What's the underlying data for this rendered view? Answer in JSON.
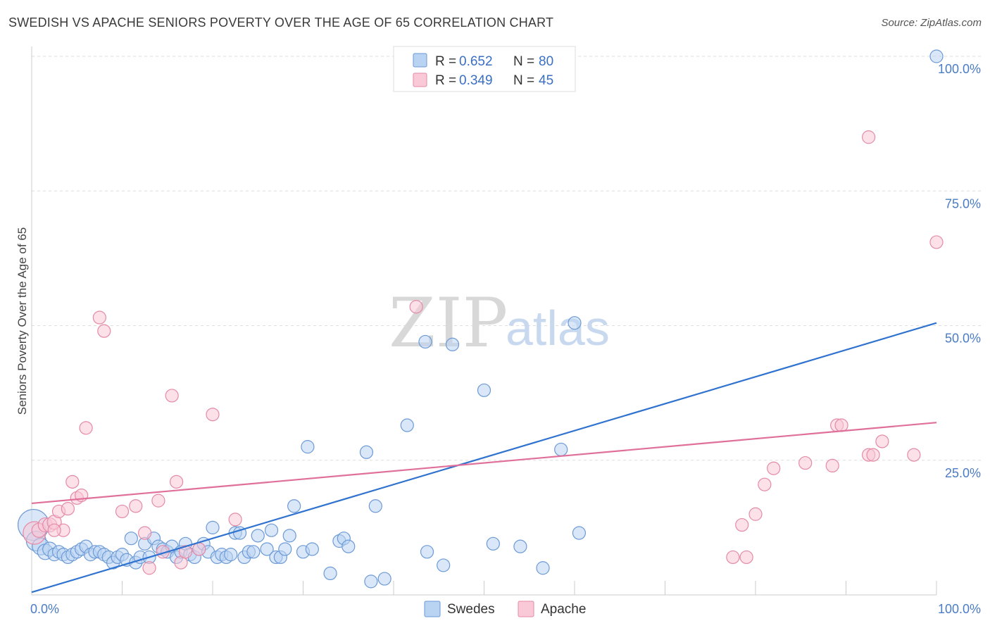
{
  "title": "SWEDISH VS APACHE SENIORS POVERTY OVER THE AGE OF 65 CORRELATION CHART",
  "source": "Source: ZipAtlas.com",
  "watermark": {
    "zip": "ZIP",
    "atlas": "atlas"
  },
  "legend_top": [
    {
      "r_label": "R =",
      "r_value": "0.652",
      "n_label": "N =",
      "n_value": "80"
    },
    {
      "r_label": "R =",
      "r_value": "0.349",
      "n_label": "N =",
      "n_value": "45"
    }
  ],
  "colors": {
    "swedes_fill": "#b9d3f2",
    "swedes_stroke": "#6c9ad6",
    "swedes_line": "#2f72cf",
    "apache_fill": "#f9c9d7",
    "apache_stroke": "#e58aa6",
    "apache_line": "#e0709a",
    "grid": "#dddddd",
    "tick_text": "#4a7cc4"
  },
  "chart_data": {
    "type": "scatter",
    "title": "SWEDISH VS APACHE SENIORS POVERTY OVER THE AGE OF 65 CORRELATION CHART",
    "xlabel": "",
    "ylabel": "Seniors Poverty Over the Age of 65",
    "xlim": [
      0,
      100
    ],
    "ylim": [
      0,
      100
    ],
    "x_tick_labels": [
      "0.0%",
      "100.0%"
    ],
    "y_tick_labels": [
      "100.0%",
      "75.0%",
      "50.0%",
      "25.0%"
    ],
    "y_tick_values": [
      100,
      75,
      50,
      25
    ],
    "grid": true,
    "legend_position": "top-center",
    "series": [
      {
        "name": "Swedes",
        "r": 0.652,
        "n": 80,
        "trend": [
          [
            0,
            0.5
          ],
          [
            100,
            50.5
          ]
        ],
        "points": [
          [
            0.2,
            13.0,
            22
          ],
          [
            0.5,
            10.0,
            14
          ],
          [
            1.0,
            9.0,
            12
          ],
          [
            1.5,
            8.0,
            11
          ],
          [
            2.0,
            8.5,
            10
          ],
          [
            2.5,
            7.5,
            9
          ],
          [
            3.0,
            8.0,
            9
          ],
          [
            3.5,
            7.5,
            9
          ],
          [
            4.0,
            7.0,
            9
          ],
          [
            4.5,
            7.5,
            9
          ],
          [
            5.0,
            8.0,
            9
          ],
          [
            5.5,
            8.5,
            9
          ],
          [
            6.0,
            9.0,
            9
          ],
          [
            6.5,
            7.5,
            9
          ],
          [
            7.0,
            8.0,
            9
          ],
          [
            7.5,
            8.0,
            9
          ],
          [
            8.0,
            7.5,
            9
          ],
          [
            8.5,
            7.0,
            9
          ],
          [
            9.0,
            6.0,
            9
          ],
          [
            9.5,
            7.0,
            9
          ],
          [
            10.0,
            7.5,
            9
          ],
          [
            10.5,
            6.5,
            9
          ],
          [
            11.0,
            10.5,
            9
          ],
          [
            11.5,
            6.0,
            9
          ],
          [
            12.0,
            7.0,
            9
          ],
          [
            12.5,
            9.5,
            9
          ],
          [
            13.0,
            7.0,
            9
          ],
          [
            13.5,
            10.5,
            9
          ],
          [
            14.0,
            9.0,
            9
          ],
          [
            14.5,
            8.5,
            9
          ],
          [
            15.0,
            8.0,
            9
          ],
          [
            15.5,
            9.0,
            9
          ],
          [
            16.0,
            7.0,
            9
          ],
          [
            16.5,
            8.0,
            9
          ],
          [
            17.0,
            9.5,
            9
          ],
          [
            17.5,
            7.5,
            9
          ],
          [
            18.0,
            7.0,
            9
          ],
          [
            18.5,
            8.5,
            9
          ],
          [
            19.0,
            9.5,
            9
          ],
          [
            19.5,
            8.0,
            9
          ],
          [
            20.0,
            12.5,
            9
          ],
          [
            20.5,
            7.0,
            9
          ],
          [
            21.0,
            7.5,
            9
          ],
          [
            21.5,
            7.0,
            9
          ],
          [
            22.0,
            7.5,
            9
          ],
          [
            22.5,
            11.5,
            9
          ],
          [
            23.0,
            11.5,
            9
          ],
          [
            23.5,
            7.0,
            9
          ],
          [
            24.0,
            8.0,
            9
          ],
          [
            24.5,
            8.0,
            9
          ],
          [
            25.0,
            11.0,
            9
          ],
          [
            26.0,
            8.5,
            9
          ],
          [
            26.5,
            12.0,
            9
          ],
          [
            27.0,
            7.0,
            9
          ],
          [
            27.5,
            7.0,
            9
          ],
          [
            28.0,
            8.5,
            9
          ],
          [
            28.5,
            11.0,
            9
          ],
          [
            29.0,
            16.5,
            9
          ],
          [
            30.0,
            8.0,
            9
          ],
          [
            30.5,
            27.5,
            9
          ],
          [
            31.0,
            8.5,
            9
          ],
          [
            33.0,
            4.0,
            9
          ],
          [
            34.0,
            10.0,
            9
          ],
          [
            34.5,
            10.5,
            9
          ],
          [
            35.0,
            9.0,
            9
          ],
          [
            37.5,
            2.5,
            9
          ],
          [
            39.0,
            3.0,
            9
          ],
          [
            37.0,
            26.5,
            9
          ],
          [
            41.5,
            31.5,
            9
          ],
          [
            43.5,
            47.0,
            9
          ],
          [
            43.7,
            8.0,
            9
          ],
          [
            45.5,
            5.5,
            9
          ],
          [
            46.5,
            46.5,
            9
          ],
          [
            50.0,
            38.0,
            9
          ],
          [
            51.0,
            9.5,
            9
          ],
          [
            54.0,
            9.0,
            9
          ],
          [
            56.5,
            5.0,
            9
          ],
          [
            58.5,
            27.0,
            9
          ],
          [
            60.5,
            11.5,
            9
          ],
          [
            60.0,
            50.5,
            9
          ],
          [
            100.0,
            100.0,
            9
          ],
          [
            38.0,
            16.5,
            9
          ]
        ]
      },
      {
        "name": "Apache",
        "r": 0.349,
        "n": 45,
        "trend": [
          [
            0,
            17.0
          ],
          [
            100,
            32.0
          ]
        ],
        "points": [
          [
            0.3,
            11.5,
            16
          ],
          [
            0.8,
            12.0,
            10
          ],
          [
            1.5,
            13.0,
            10
          ],
          [
            2.0,
            13.0,
            10
          ],
          [
            2.5,
            13.5,
            10
          ],
          [
            3.0,
            15.5,
            9
          ],
          [
            3.5,
            12.0,
            9
          ],
          [
            4.0,
            16.0,
            9
          ],
          [
            4.5,
            21.0,
            9
          ],
          [
            5.0,
            18.0,
            9
          ],
          [
            5.5,
            18.5,
            9
          ],
          [
            6.0,
            31.0,
            9
          ],
          [
            7.5,
            51.5,
            9
          ],
          [
            8.0,
            49.0,
            9
          ],
          [
            10.0,
            15.5,
            9
          ],
          [
            11.5,
            16.5,
            9
          ],
          [
            12.5,
            11.5,
            9
          ],
          [
            13.0,
            5.0,
            9
          ],
          [
            14.0,
            17.5,
            9
          ],
          [
            14.5,
            8.0,
            9
          ],
          [
            15.5,
            37.0,
            9
          ],
          [
            16.0,
            21.0,
            9
          ],
          [
            16.5,
            6.0,
            9
          ],
          [
            17.0,
            8.0,
            9
          ],
          [
            18.5,
            8.5,
            9
          ],
          [
            20.0,
            33.5,
            9
          ],
          [
            22.5,
            14.0,
            9
          ],
          [
            42.5,
            53.5,
            9
          ],
          [
            77.5,
            7.0,
            9
          ],
          [
            78.5,
            13.0,
            9
          ],
          [
            79.0,
            7.0,
            9
          ],
          [
            80.0,
            15.0,
            9
          ],
          [
            81.0,
            20.5,
            9
          ],
          [
            82.0,
            23.5,
            9
          ],
          [
            85.5,
            24.5,
            9
          ],
          [
            88.5,
            24.0,
            9
          ],
          [
            89.0,
            31.5,
            9
          ],
          [
            89.5,
            31.5,
            9
          ],
          [
            92.5,
            26.0,
            9
          ],
          [
            93.0,
            26.0,
            9
          ],
          [
            94.0,
            28.5,
            9
          ],
          [
            97.5,
            26.0,
            9
          ],
          [
            92.5,
            85.0,
            9
          ],
          [
            100.0,
            65.5,
            9
          ],
          [
            2.5,
            12.0,
            9
          ]
        ]
      }
    ]
  }
}
